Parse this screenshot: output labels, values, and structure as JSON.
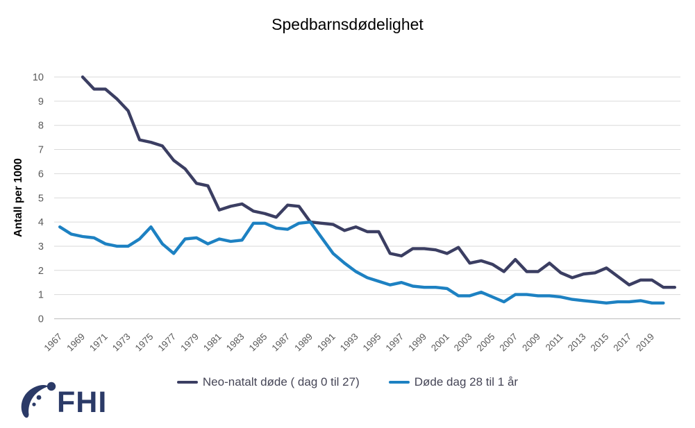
{
  "title": "Spedbarnsdødelighet",
  "logo": {
    "text": "FHI",
    "color": "#2b3a67"
  },
  "legend": [
    {
      "label": "Neo-natalt døde ( dag 0 til 27)",
      "color": "#3b3e62"
    },
    {
      "label": "Døde dag 28 til 1 år",
      "color": "#1d81c2"
    }
  ],
  "colors": {
    "background": "#ffffff",
    "grid": "#d9d9d9",
    "axis": "#c6c6c6",
    "tick_label": "#595959",
    "title_text": "#000000",
    "legend_text": "#454556"
  },
  "chart_data": {
    "type": "line",
    "title": "Spedbarnsdødelighet",
    "xlabel": "",
    "ylabel": "Antall per 1000",
    "ylim": [
      0,
      10
    ],
    "y_ticks": [
      0,
      1,
      2,
      3,
      4,
      5,
      6,
      7,
      8,
      9,
      10
    ],
    "grid": "horizontal",
    "legend_position": "bottom",
    "x": [
      1967,
      1968,
      1969,
      1970,
      1971,
      1972,
      1973,
      1974,
      1975,
      1976,
      1977,
      1978,
      1979,
      1980,
      1981,
      1982,
      1983,
      1984,
      1985,
      1986,
      1987,
      1988,
      1989,
      1990,
      1991,
      1992,
      1993,
      1994,
      1995,
      1996,
      1997,
      1998,
      1999,
      2000,
      2001,
      2002,
      2003,
      2004,
      2005,
      2006,
      2007,
      2008,
      2009,
      2010,
      2011,
      2012,
      2013,
      2014,
      2015,
      2016,
      2017,
      2018,
      2019,
      2020,
      2021
    ],
    "x_tick_labels": [
      "1967",
      "1969",
      "1971",
      "1973",
      "1975",
      "1977",
      "1979",
      "1981",
      "1983",
      "1985",
      "1987",
      "1989",
      "1991",
      "1993",
      "1995",
      "1997",
      "1999",
      "2001",
      "2003",
      "2005",
      "2007",
      "2009",
      "2011",
      "2013",
      "2015",
      "2017",
      "2019"
    ],
    "series": [
      {
        "id": "neonatal",
        "name": "Neo-natalt døde ( dag 0 til 27)",
        "color": "#3b3e62",
        "values": [
          null,
          null,
          10,
          9.5,
          9.5,
          9.1,
          8.6,
          7.4,
          7.3,
          7.15,
          6.55,
          6.2,
          5.6,
          5.5,
          4.5,
          4.65,
          4.75,
          4.45,
          4.35,
          4.2,
          4.7,
          4.65,
          4,
          3.95,
          3.9,
          3.65,
          3.8,
          3.6,
          3.6,
          2.7,
          2.6,
          2.9,
          2.9,
          2.85,
          2.7,
          2.95,
          2.3,
          2.4,
          2.25,
          1.95,
          2.45,
          1.95,
          1.95,
          2.3,
          1.9,
          1.7,
          1.85,
          1.9,
          2.1,
          1.75,
          1.4,
          1.6,
          1.6,
          1.3,
          1.3
        ]
      },
      {
        "id": "postneonatal",
        "name": "Døde dag 28 til 1 år",
        "color": "#1d81c2",
        "values": [
          3.8,
          3.5,
          3.4,
          3.35,
          3.1,
          3,
          3,
          3.3,
          3.8,
          3.1,
          2.7,
          3.3,
          3.35,
          3.1,
          3.3,
          3.2,
          3.25,
          3.95,
          3.95,
          3.75,
          3.7,
          3.95,
          4,
          3.35,
          2.7,
          2.3,
          1.95,
          1.7,
          1.55,
          1.4,
          1.5,
          1.35,
          1.3,
          1.3,
          1.25,
          0.95,
          0.95,
          1.1,
          0.9,
          0.7,
          1,
          1,
          0.95,
          0.95,
          0.9,
          0.8,
          0.75,
          0.7,
          0.65,
          0.7,
          0.7,
          0.75,
          0.65,
          0.65,
          null
        ]
      }
    ]
  }
}
